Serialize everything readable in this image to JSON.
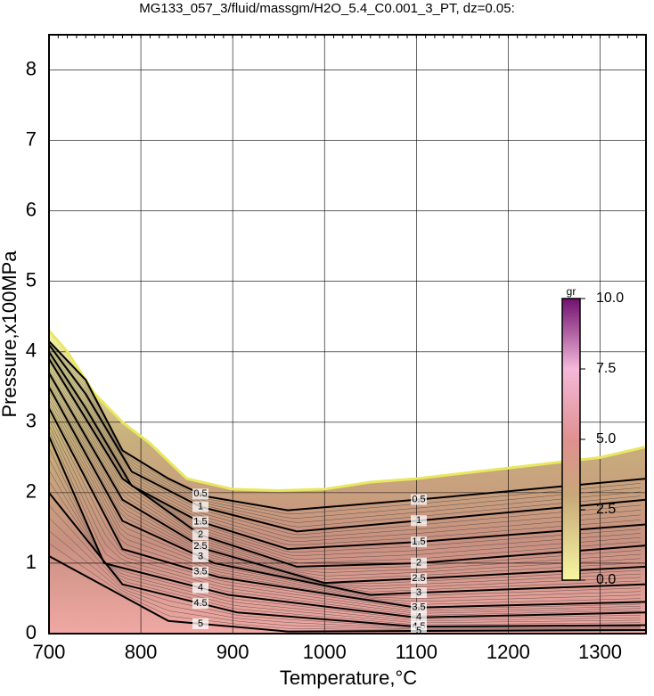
{
  "chart_data": {
    "type": "contour",
    "title": "MG133_057_3/fluid/massgm/H2O_5.4_C0.001_3_PT, dz=0.05:",
    "x_label": "Temperature,°C",
    "y_label": "Pressure,x100MPa",
    "xlim": [
      700,
      1350
    ],
    "ylim": [
      0,
      8.5
    ],
    "xticks": [
      700,
      800,
      900,
      1000,
      1100,
      1200,
      1300
    ],
    "yticks": [
      0,
      1,
      2,
      3,
      4,
      5,
      6,
      7,
      8
    ],
    "grid": true,
    "boundary": {
      "x": [
        700,
        720,
        750,
        780,
        810,
        850,
        900,
        950,
        1000,
        1050,
        1100,
        1200,
        1300,
        1350
      ],
      "y": [
        4.3,
        4.0,
        3.4,
        3.0,
        2.7,
        2.2,
        2.05,
        2.03,
        2.05,
        2.15,
        2.2,
        2.35,
        2.5,
        2.65
      ]
    },
    "contours": [
      {
        "level": 0.5,
        "x": [
          700,
          740,
          780,
          830,
          870,
          960,
          1100,
          1350
        ],
        "y": [
          4.15,
          3.6,
          2.6,
          2.2,
          1.95,
          1.75,
          1.9,
          2.2
        ]
      },
      {
        "level": 1,
        "x": [
          700,
          740,
          790,
          865,
          970,
          1100,
          1350
        ],
        "y": [
          4.1,
          3.4,
          2.3,
          1.8,
          1.45,
          1.6,
          1.9
        ]
      },
      {
        "level": 1.5,
        "x": [
          700,
          740,
          790,
          862,
          960,
          1100,
          1350
        ],
        "y": [
          4.0,
          3.2,
          2.1,
          1.6,
          1.2,
          1.3,
          1.55
        ]
      },
      {
        "level": 2,
        "x": [
          700,
          780,
          865,
          970,
          1100,
          1350
        ],
        "y": [
          3.9,
          2.2,
          1.4,
          0.95,
          1.0,
          1.25
        ]
      },
      {
        "level": 2.5,
        "x": [
          700,
          780,
          870,
          1000,
          1100,
          1350
        ],
        "y": [
          3.7,
          1.9,
          1.2,
          0.72,
          0.78,
          0.95
        ]
      },
      {
        "level": 3,
        "x": [
          700,
          780,
          880,
          1050,
          1100,
          1350
        ],
        "y": [
          3.5,
          1.6,
          1.0,
          0.55,
          0.58,
          0.7
        ]
      },
      {
        "level": 3.5,
        "x": [
          700,
          780,
          885,
          1100,
          1350
        ],
        "y": [
          3.2,
          1.2,
          0.8,
          0.37,
          0.45
        ]
      },
      {
        "level": 4,
        "x": [
          700,
          760,
          895,
          1100,
          1350
        ],
        "y": [
          2.8,
          1.0,
          0.55,
          0.23,
          0.3
        ]
      },
      {
        "level": 4.5,
        "x": [
          700,
          780,
          905,
          1100,
          1350
        ],
        "y": [
          2.0,
          0.7,
          0.3,
          0.1,
          0.12
        ]
      },
      {
        "level": 5,
        "x": [
          700,
          830,
          960,
          1350
        ],
        "y": [
          1.1,
          0.18,
          0.03,
          0.05
        ]
      }
    ],
    "colorbar": {
      "label": "gr",
      "lim": [
        0,
        10
      ],
      "ticks": [
        {
          "value": 0,
          "label": "0.0"
        },
        {
          "value": 2.5,
          "label": "2.5"
        },
        {
          "value": 5,
          "label": "5.0"
        },
        {
          "value": 7.5,
          "label": "7.5"
        },
        {
          "value": 10,
          "label": "10.0"
        }
      ]
    }
  }
}
